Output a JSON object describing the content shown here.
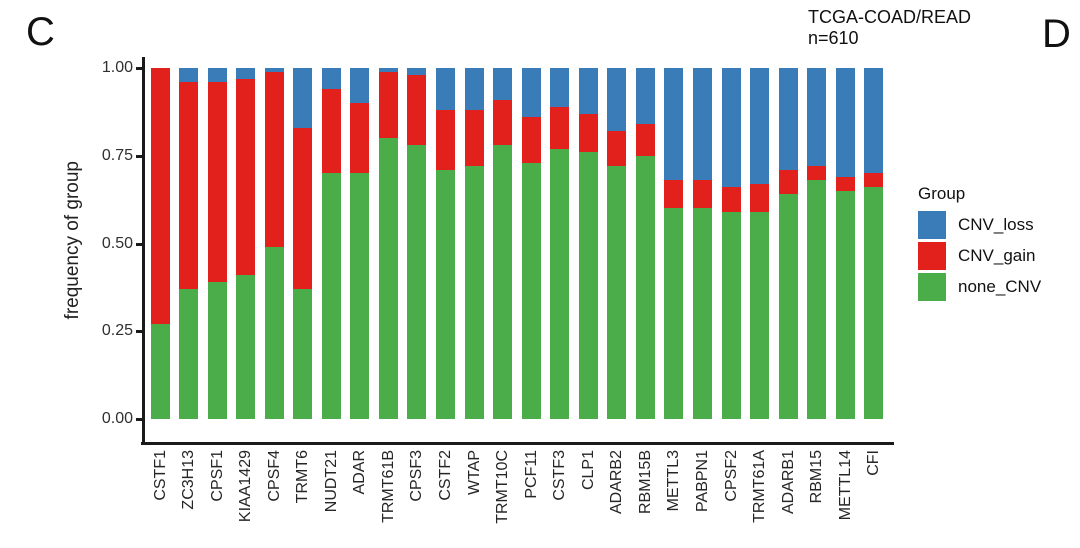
{
  "panels": {
    "c": "C",
    "d": "D"
  },
  "annotation": {
    "cohort": "TCGA-COAD/READ",
    "n": "n=610"
  },
  "legend": {
    "title": "Group",
    "items": [
      {
        "label": "CNV_loss",
        "color": "#3a7cb8"
      },
      {
        "label": "CNV_gain",
        "color": "#e2211c"
      },
      {
        "label": "none_CNV",
        "color": "#4bad4a"
      }
    ]
  },
  "chart_data": {
    "type": "bar",
    "stacked": true,
    "title": "TCGA-COAD/READ n=610",
    "xlabel": "",
    "ylabel": "frequency of group",
    "ylim": [
      0,
      1
    ],
    "grid": false,
    "legend_position": "right",
    "legend_title": "Group",
    "yticks": [
      {
        "label": "0.00",
        "value": 0
      },
      {
        "label": "0.25",
        "value": 0.25
      },
      {
        "label": "0.50",
        "value": 0.5
      },
      {
        "label": "0.75",
        "value": 0.75
      },
      {
        "label": "1.00",
        "value": 1
      }
    ],
    "categories": [
      "CSTF1",
      "ZC3H13",
      "CPSF1",
      "KIAA1429",
      "CPSF4",
      "TRMT6",
      "NUDT21",
      "ADAR",
      "TRMT61B",
      "CPSF3",
      "CSTF2",
      "WTAP",
      "TRMT10C",
      "PCF11",
      "CSTF3",
      "CLP1",
      "ADARB2",
      "RBM15B",
      "METTL3",
      "PABPN1",
      "CPSF2",
      "TRMT61A",
      "ADARB1",
      "RBM15",
      "METTL14",
      "CFI"
    ],
    "series": [
      {
        "name": "none_CNV",
        "color": "#4bad4a",
        "values": [
          0.27,
          0.37,
          0.39,
          0.41,
          0.49,
          0.37,
          0.7,
          0.7,
          0.8,
          0.78,
          0.71,
          0.72,
          0.78,
          0.73,
          0.77,
          0.76,
          0.72,
          0.75,
          0.6,
          0.6,
          0.59,
          0.59,
          0.64,
          0.68,
          0.65,
          0.66
        ]
      },
      {
        "name": "CNV_gain",
        "color": "#e2211c",
        "values": [
          0.73,
          0.59,
          0.57,
          0.56,
          0.5,
          0.46,
          0.24,
          0.2,
          0.19,
          0.2,
          0.17,
          0.16,
          0.13,
          0.13,
          0.12,
          0.11,
          0.1,
          0.09,
          0.08,
          0.08,
          0.07,
          0.08,
          0.07,
          0.04,
          0.04,
          0.04
        ]
      },
      {
        "name": "CNV_loss",
        "color": "#3a7cb8",
        "values": [
          0.0,
          0.04,
          0.04,
          0.03,
          0.01,
          0.17,
          0.06,
          0.1,
          0.01,
          0.02,
          0.12,
          0.12,
          0.09,
          0.14,
          0.11,
          0.13,
          0.18,
          0.16,
          0.32,
          0.32,
          0.34,
          0.33,
          0.29,
          0.28,
          0.31,
          0.3
        ]
      }
    ]
  }
}
